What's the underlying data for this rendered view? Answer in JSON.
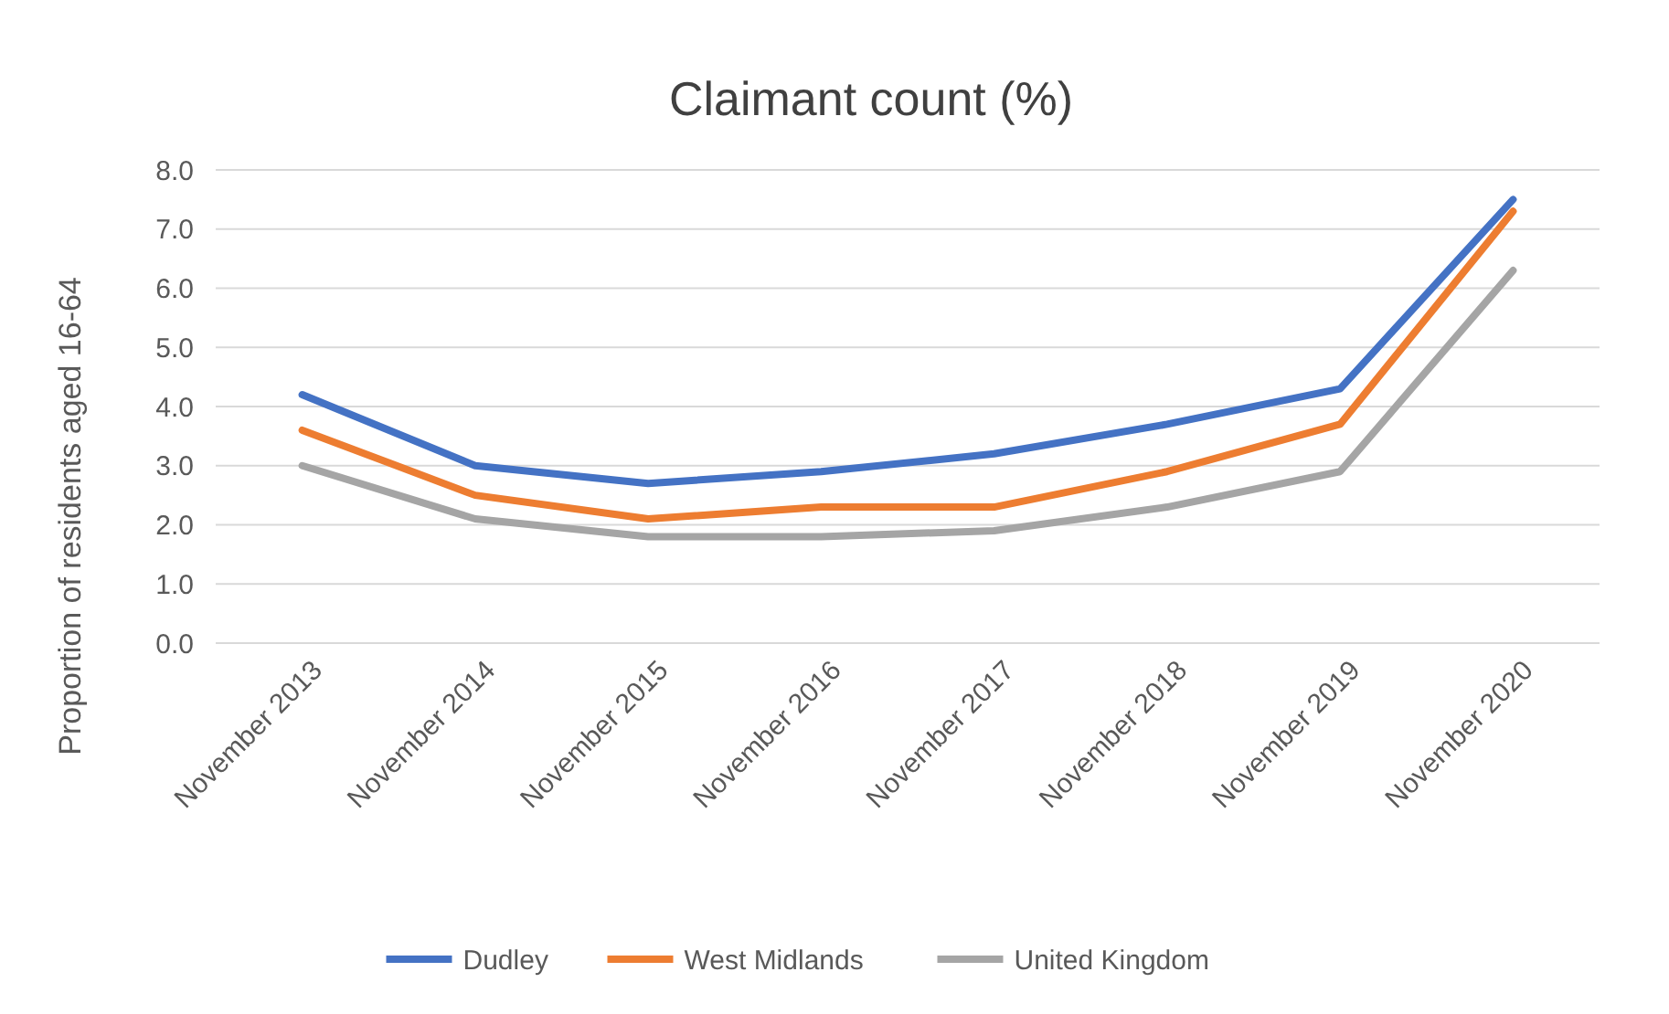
{
  "chart_data": {
    "type": "line",
    "title": "Claimant count (%)",
    "ylabel": "Proportion of residents aged 16-64",
    "categories": [
      "November 2013",
      "November 2014",
      "November 2015",
      "November 2016",
      "November 2017",
      "November 2018",
      "November 2019",
      "November 2020"
    ],
    "series": [
      {
        "name": "Dudley",
        "color": "#4472c4",
        "values": [
          4.2,
          3.0,
          2.7,
          2.9,
          3.2,
          3.7,
          4.3,
          7.5
        ]
      },
      {
        "name": "West Midlands",
        "color": "#ed7d31",
        "values": [
          3.6,
          2.5,
          2.1,
          2.3,
          2.3,
          2.9,
          3.7,
          7.3
        ]
      },
      {
        "name": "United Kingdom",
        "color": "#a5a5a5",
        "values": [
          3.0,
          2.1,
          1.8,
          1.8,
          1.9,
          2.3,
          2.9,
          6.3
        ]
      }
    ],
    "ylim": [
      0,
      8
    ],
    "yticks": [
      {
        "value": 0,
        "label": "0.0"
      },
      {
        "value": 1,
        "label": "1.0"
      },
      {
        "value": 2,
        "label": "2.0"
      },
      {
        "value": 3,
        "label": "3.0"
      },
      {
        "value": 4,
        "label": "4.0"
      },
      {
        "value": 5,
        "label": "5.0"
      },
      {
        "value": 6,
        "label": "6.0"
      },
      {
        "value": 7,
        "label": "7.0"
      },
      {
        "value": 8,
        "label": "8.0"
      }
    ],
    "grid": "y",
    "legend": "bottom",
    "marker": "none",
    "line_style": "solid"
  }
}
